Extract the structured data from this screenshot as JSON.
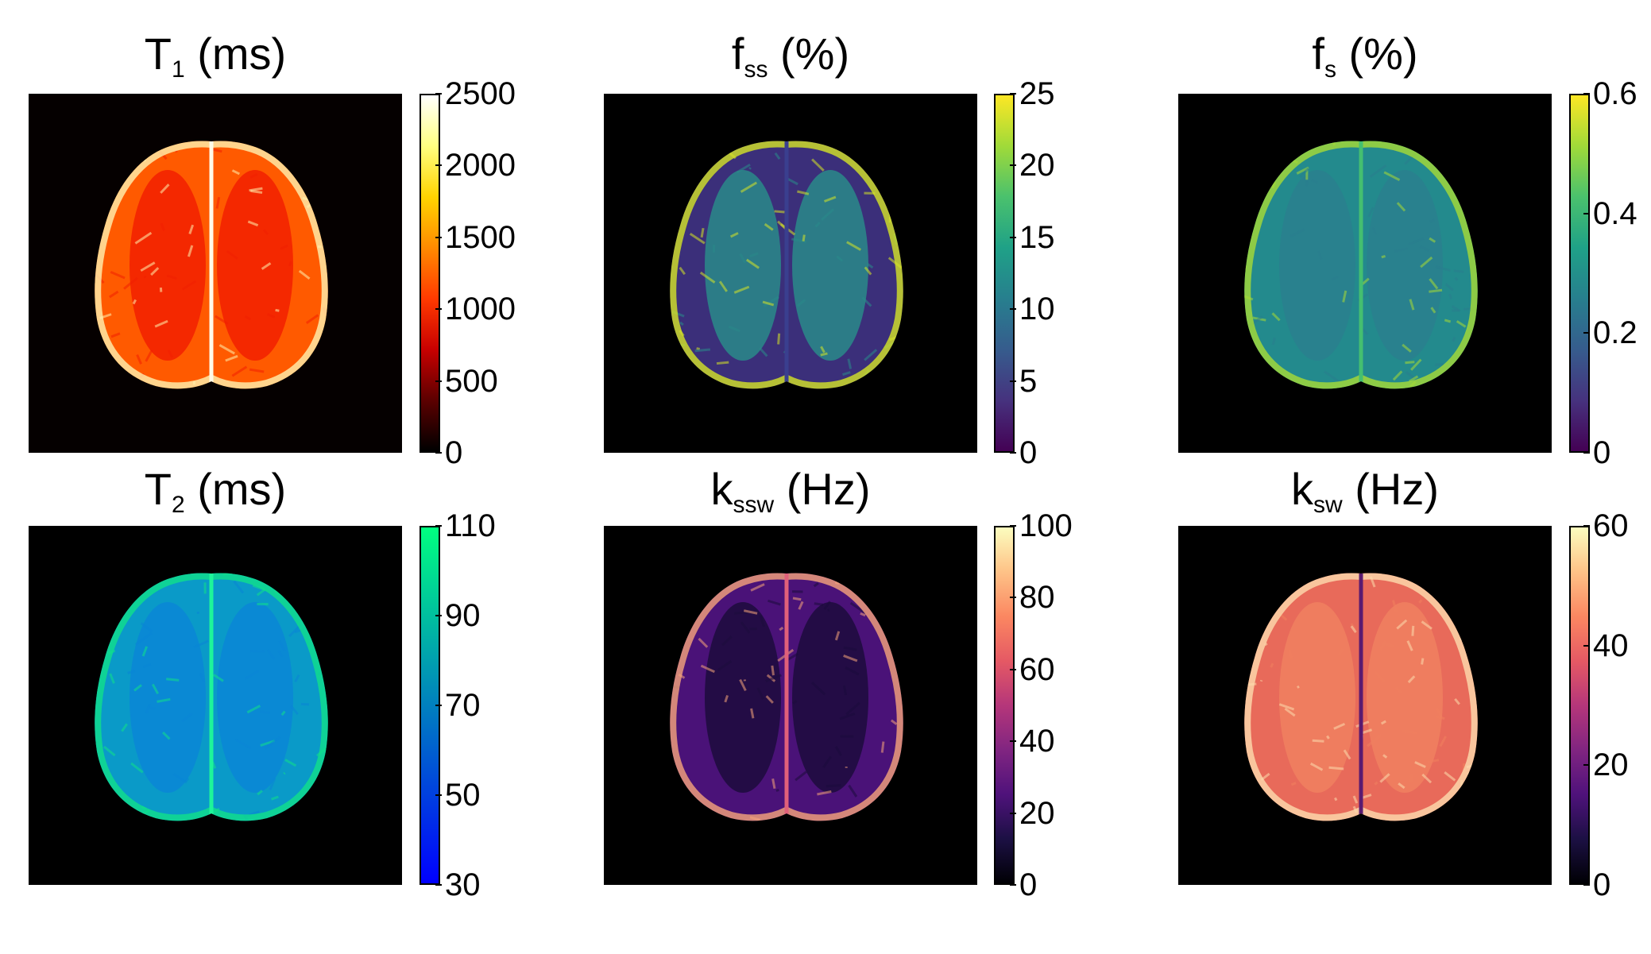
{
  "figure": {
    "panels": [
      {
        "id": "t1",
        "title_main": "T",
        "title_sub": "1",
        "title_rest": " (ms)",
        "colormap": "hot",
        "colorbar_ticks": [
          "2500",
          "2000",
          "1500",
          "1000",
          "500",
          "0"
        ],
        "colorbar_tick_values": [
          2500,
          2000,
          1500,
          1000,
          500,
          0
        ],
        "colorbar_range": [
          0,
          2500
        ],
        "colors": {
          "bg": "#050000",
          "tissue": "#ff5a00",
          "edge": "#fff3b0",
          "wm": "#f22000",
          "line": "#fffbe8"
        }
      },
      {
        "id": "fss",
        "title_main": "f",
        "title_sub": "ss",
        "title_rest": " (%)",
        "colormap": "viridis",
        "colorbar_ticks": [
          "25",
          "20",
          "15",
          "10",
          "5",
          "0"
        ],
        "colorbar_tick_values": [
          25,
          20,
          15,
          10,
          5,
          0
        ],
        "colorbar_range": [
          0,
          25
        ],
        "colors": {
          "bg": "#000000",
          "tissue": "#3b2f7a",
          "edge": "#d6e526",
          "wm": "#2a8a8a",
          "line": "#3a3f8f"
        }
      },
      {
        "id": "fs",
        "title_main": "f",
        "title_sub": "s",
        "title_rest": " (%)",
        "colormap": "viridis",
        "colorbar_ticks": [
          "0.6",
          "0.4",
          "0.2",
          "0"
        ],
        "colorbar_tick_values": [
          0.6,
          0.4,
          0.2,
          0
        ],
        "colorbar_range": [
          0,
          0.6
        ],
        "colors": {
          "bg": "#000000",
          "tissue": "#238a8d",
          "edge": "#a8db34",
          "wm": "#2a7f8e",
          "line": "#44bf70"
        }
      },
      {
        "id": "t2",
        "title_main": "T",
        "title_sub": "2",
        "title_rest": " (ms)",
        "colormap": "winter",
        "colorbar_ticks": [
          "110",
          "90",
          "70",
          "50",
          "30"
        ],
        "colorbar_tick_values": [
          110,
          90,
          70,
          50,
          30
        ],
        "colorbar_range": [
          30,
          110
        ],
        "colors": {
          "bg": "#000000",
          "tissue": "#0a9ac8",
          "edge": "#10e08a",
          "wm": "#0a86d6",
          "line": "#1ef59a"
        }
      },
      {
        "id": "kssw",
        "title_main": "k",
        "title_sub": "ssw",
        "title_rest": " (Hz)",
        "colormap": "magma",
        "colorbar_ticks": [
          "100",
          "80",
          "60",
          "40",
          "20",
          "0"
        ],
        "colorbar_tick_values": [
          100,
          80,
          60,
          40,
          20,
          0
        ],
        "colorbar_range": [
          0,
          100
        ],
        "colors": {
          "bg": "#000000",
          "tissue": "#4a1278",
          "edge": "#f6a57a",
          "wm": "#1c0c3c",
          "line": "#e0607a"
        }
      },
      {
        "id": "ksw",
        "title_main": "k",
        "title_sub": "sw",
        "title_rest": " (Hz)",
        "colormap": "magma",
        "colorbar_ticks": [
          "60",
          "40",
          "20",
          "0"
        ],
        "colorbar_tick_values": [
          60,
          40,
          20,
          0
        ],
        "colorbar_range": [
          0,
          60
        ],
        "colors": {
          "bg": "#000000",
          "tissue": "#e86a5a",
          "edge": "#fcdcae",
          "wm": "#f08060",
          "line": "#5a1a70"
        }
      }
    ]
  }
}
